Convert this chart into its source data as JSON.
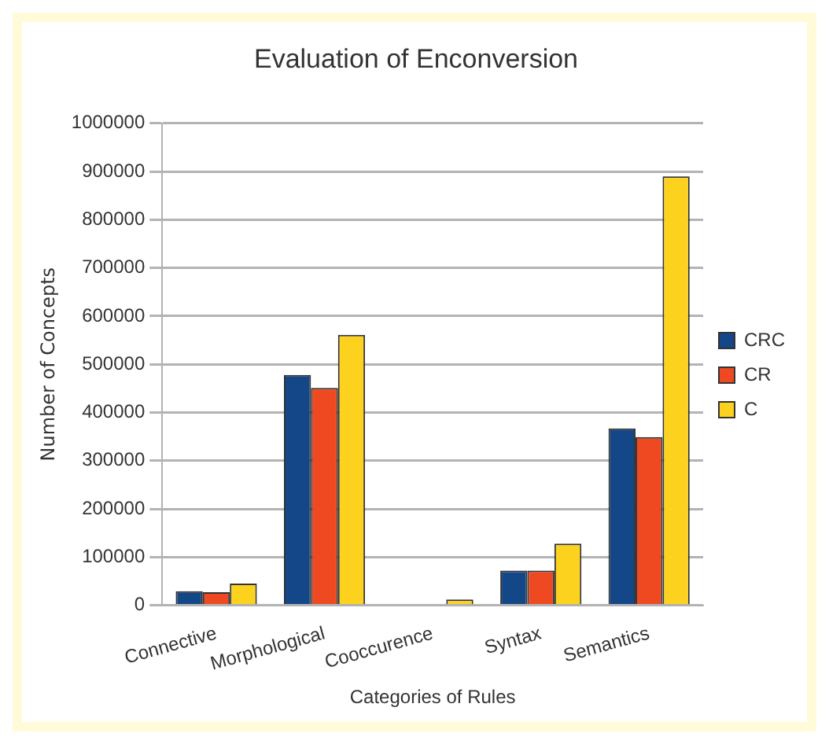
{
  "chart_data": {
    "type": "bar",
    "title": "Evaluation of Enconversion",
    "xlabel": "Categories of Rules",
    "ylabel": "Number of Concepts",
    "categories": [
      "Connective",
      "Morphological",
      "Cooccurence",
      "Syntax",
      "Semantics"
    ],
    "series": [
      {
        "name": "CRC",
        "color": "#134787",
        "values": [
          29000,
          478000,
          0,
          72000,
          367000
        ]
      },
      {
        "name": "CR",
        "color": "#ef4922",
        "values": [
          27000,
          451000,
          0,
          72000,
          349000
        ]
      },
      {
        "name": "C",
        "color": "#fcd21e",
        "values": [
          45000,
          561000,
          12000,
          128000,
          890000
        ]
      }
    ],
    "ylim": [
      0,
      1000000
    ],
    "yticks": [
      0,
      100000,
      200000,
      300000,
      400000,
      500000,
      600000,
      700000,
      800000,
      900000,
      1000000
    ],
    "grid": "y",
    "legend": "right"
  }
}
